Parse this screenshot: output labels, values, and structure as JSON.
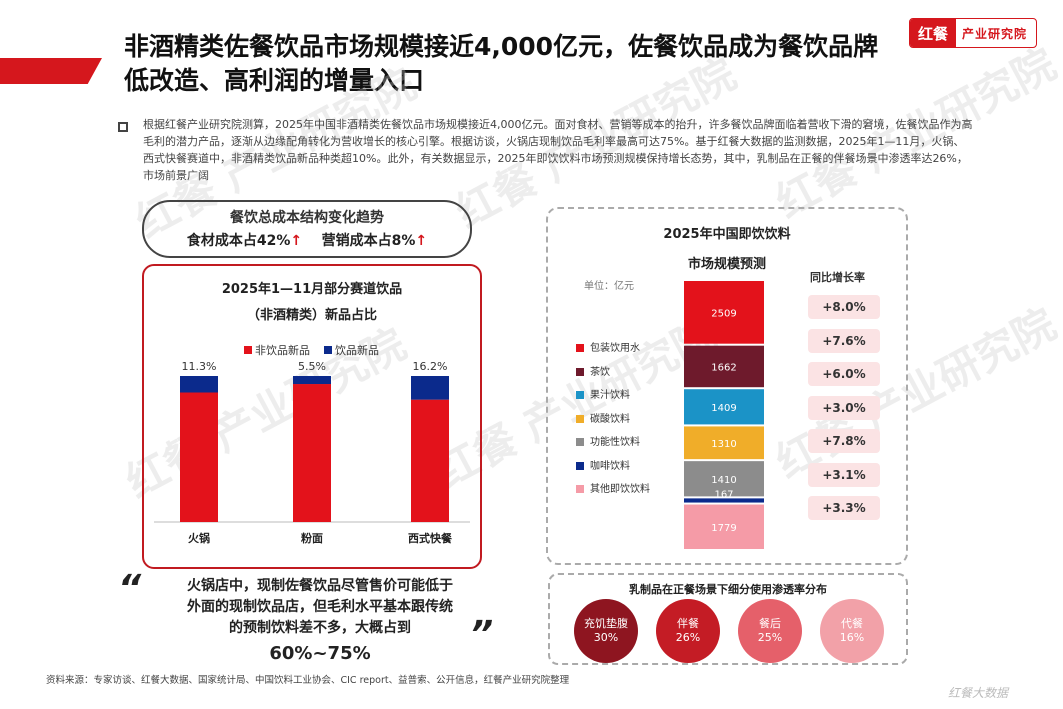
{
  "header": {
    "title_line1": "非酒精类佐餐饮品市场规模接近4,000亿元，佐餐饮品成为餐饮品牌",
    "title_line2": "低改造、高利润的增量入口",
    "logo_mark": "红餐",
    "logo_text": "产业研究院"
  },
  "intro": {
    "text": "根据红餐产业研究院测算，2025年中国非酒精类佐餐饮品市场规模接近4,000亿元。面对食材、营销等成本的抬升，许多餐饮品牌面临着营收下滑的窘境，佐餐饮品作为高毛利的潜力产品，逐渐从边缘配角转化为营收增长的核心引擎。根据访谈，火锅店现制饮品毛利率最高可达75%。基于红餐大数据的监测数据，2025年1—11月，火锅、西式快餐赛道中，非酒精类饮品新品种类超10%。此外，有关数据显示，2025年即饮饮料市场预测规模保持增长态势，其中，乳制品在正餐的伴餐场景中渗透率达26%，市场前景广阔"
  },
  "cost_pill": {
    "title": "餐饮总成本结构变化趋势",
    "food": "食材成本占42%",
    "marketing": "营销成本占8%",
    "arrow": "↑"
  },
  "quote": {
    "open": "“",
    "close": "”",
    "line1": "火锅店中，现制佐餐饮品尽管售价可能低于",
    "line2": "外面的现制饮品店，但毛利水平基本跟传统",
    "line3": "的预制饮料差不多，大概占到",
    "big": "60%~75%"
  },
  "chart_data": [
    {
      "type": "bar",
      "stacked": true,
      "title": "2025年1—11月部分赛道饮品",
      "subtitle": "（非酒精类）新品占比",
      "categories": [
        "火锅",
        "粉面",
        "西式快餐"
      ],
      "series": [
        {
          "name": "非饮品新品",
          "values": [
            88.7,
            94.5,
            83.8
          ],
          "color": "#e3121b"
        },
        {
          "name": "饮品新品",
          "values": [
            11.3,
            5.5,
            16.2
          ],
          "color": "#0b2a8c"
        }
      ],
      "data_labels": [
        "11.3%",
        "5.5%",
        "16.2%"
      ],
      "ylim": [
        0,
        100
      ]
    },
    {
      "type": "bar",
      "stacked": true,
      "title": "2025年中国即饮饮料",
      "subtitle": "市场规模预测",
      "unit": "单位：亿元",
      "growth_header": "同比增长率",
      "segments": [
        {
          "name": "包装饮用水",
          "value": 2509,
          "growth": "+8.0%",
          "color": "#e3121b"
        },
        {
          "name": "茶饮",
          "value": 1662,
          "growth": "+7.6%",
          "color": "#6e1a2c"
        },
        {
          "name": "果汁饮料",
          "value": 1409,
          "growth": "+6.0%",
          "color": "#1b93c7"
        },
        {
          "name": "碳酸饮料",
          "value": 1310,
          "growth": "+3.0%",
          "color": "#f0ad29"
        },
        {
          "name": "功能性饮料",
          "value": 1410,
          "growth": "+7.8%",
          "color": "#8c8c8c"
        },
        {
          "name": "咖啡饮料",
          "value": 167,
          "growth": "+3.1%",
          "color": "#0b2a8c"
        },
        {
          "name": "其他即饮饮料",
          "value": 1779,
          "growth": "+3.3%",
          "color": "#f59ba7"
        }
      ]
    },
    {
      "type": "table",
      "title": "乳制品在正餐场景下细分使用渗透率分布",
      "items": [
        {
          "label": "充饥垫腹",
          "value": "30%",
          "color": "#8e1520"
        },
        {
          "label": "伴餐",
          "value": "26%",
          "color": "#c41c25"
        },
        {
          "label": "餐后",
          "value": "25%",
          "color": "#e5606a"
        },
        {
          "label": "代餐",
          "value": "16%",
          "color": "#f2a1a8"
        }
      ]
    }
  ],
  "source": "资料来源：专家访谈、红餐大数据、国家统计局、中国饮料工业协会、CIC report、益普索、公开信息，红餐产业研究院整理",
  "corner_mark": "红餐大数据",
  "watermark": "红餐 产业研究院"
}
